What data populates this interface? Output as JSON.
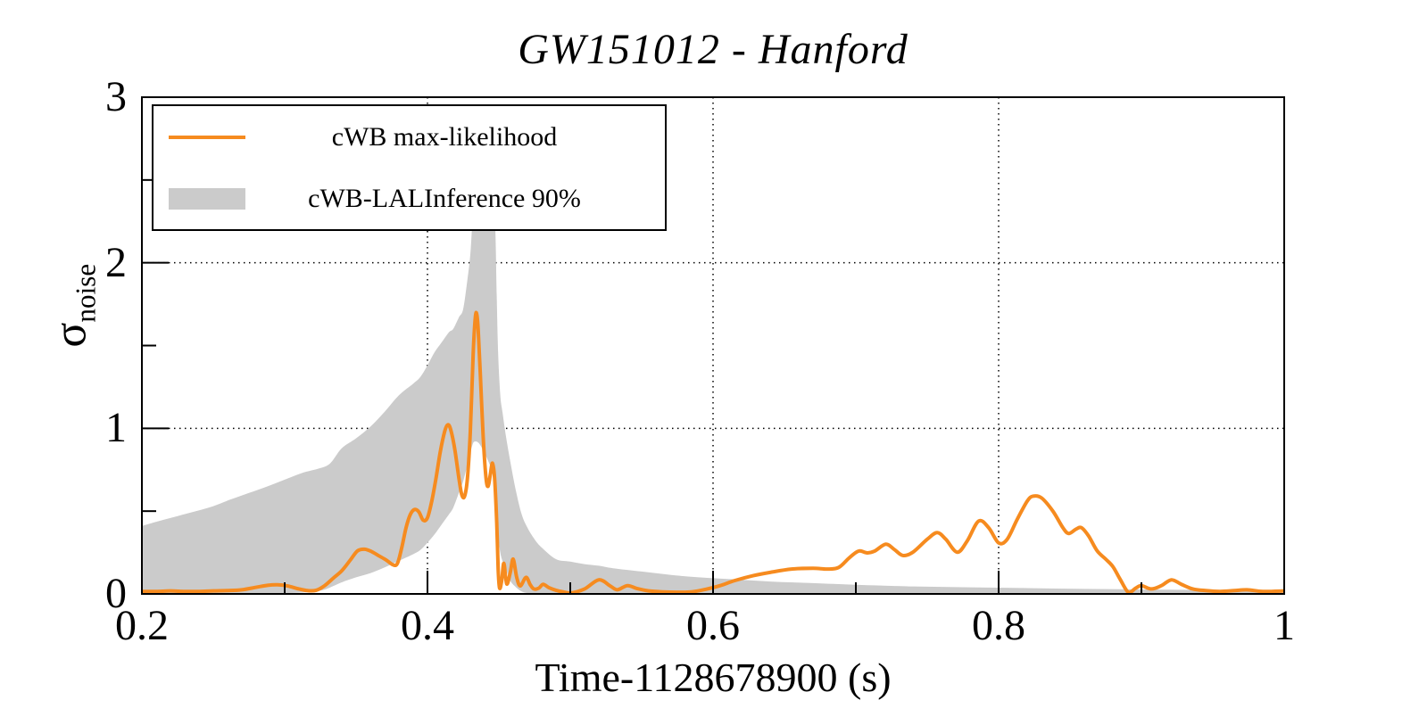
{
  "page": {
    "background": "#ffffff"
  },
  "chart_data": {
    "type": "line",
    "title": "GW151012 - Hanford",
    "xlabel": "Time-1128678900 (s)",
    "ylabel_symbol": "σ",
    "ylabel_subscript": "noise",
    "xlim": [
      0.2,
      1.0
    ],
    "ylim": [
      0,
      3
    ],
    "x_ticks": [
      0.2,
      0.4,
      0.6,
      0.8,
      1.0
    ],
    "x_tick_labels": [
      "0.2",
      "0.4",
      "0.6",
      "0.8",
      "1"
    ],
    "x_minor_ticks": [
      0.3,
      0.5,
      0.7,
      0.9
    ],
    "y_ticks": [
      0,
      1,
      2,
      3
    ],
    "y_tick_labels": [
      "0",
      "1",
      "2",
      "3"
    ],
    "y_minor_ticks": [
      0.5,
      1.5,
      2.5
    ],
    "grid": {
      "x_values": [
        0.4,
        0.6,
        0.8
      ],
      "y_values": [
        1,
        2
      ],
      "style": "dotted"
    },
    "colors": {
      "line": "#f68b1f",
      "band": "#cbcbcb",
      "axis": "#000000"
    },
    "legend": {
      "position": "top-left",
      "entries": [
        {
          "label": "cWB max-likelihood",
          "type": "line",
          "color": "#f68b1f"
        },
        {
          "label": "cWB-LALInference 90%",
          "type": "band",
          "color": "#cbcbcb"
        }
      ]
    },
    "series": [
      {
        "name": "cWB max-likelihood",
        "type": "line",
        "color": "#f68b1f",
        "x": [
          0.2,
          0.21,
          0.22,
          0.23,
          0.24,
          0.25,
          0.26,
          0.27,
          0.28,
          0.288,
          0.295,
          0.302,
          0.31,
          0.316,
          0.322,
          0.328,
          0.334,
          0.34,
          0.346,
          0.351,
          0.356,
          0.361,
          0.366,
          0.371,
          0.376,
          0.379,
          0.382,
          0.385,
          0.388,
          0.391,
          0.394,
          0.397,
          0.4,
          0.403,
          0.406,
          0.409,
          0.412,
          0.414,
          0.416,
          0.419,
          0.422,
          0.424,
          0.426,
          0.428,
          0.43,
          0.432,
          0.4335,
          0.4345,
          0.4355,
          0.437,
          0.439,
          0.441,
          0.4425,
          0.444,
          0.4455,
          0.447,
          0.4485,
          0.4495,
          0.4505,
          0.452,
          0.4535,
          0.4555,
          0.458,
          0.46,
          0.4625,
          0.465,
          0.469,
          0.472,
          0.4745,
          0.478,
          0.481,
          0.485,
          0.49,
          0.495,
          0.5,
          0.51,
          0.52,
          0.528,
          0.533,
          0.54,
          0.547,
          0.555,
          0.565,
          0.575,
          0.585,
          0.595,
          0.605,
          0.615,
          0.628,
          0.64,
          0.655,
          0.67,
          0.68,
          0.688,
          0.695,
          0.7,
          0.703,
          0.708,
          0.713,
          0.721,
          0.727,
          0.733,
          0.74,
          0.75,
          0.757,
          0.763,
          0.771,
          0.778,
          0.786,
          0.793,
          0.8,
          0.806,
          0.813,
          0.82,
          0.824,
          0.83,
          0.838,
          0.845,
          0.849,
          0.854,
          0.858,
          0.863,
          0.869,
          0.875,
          0.88,
          0.885,
          0.891,
          0.896,
          0.9,
          0.907,
          0.914,
          0.921,
          0.928,
          0.936,
          0.945,
          0.955,
          0.965,
          0.974,
          0.985,
          1.0
        ],
        "y": [
          0.015,
          0.015,
          0.018,
          0.015,
          0.015,
          0.018,
          0.02,
          0.025,
          0.04,
          0.052,
          0.055,
          0.048,
          0.03,
          0.02,
          0.022,
          0.05,
          0.095,
          0.14,
          0.205,
          0.26,
          0.27,
          0.255,
          0.23,
          0.205,
          0.175,
          0.185,
          0.28,
          0.4,
          0.48,
          0.51,
          0.495,
          0.445,
          0.46,
          0.56,
          0.7,
          0.86,
          0.98,
          1.02,
          1.0,
          0.88,
          0.7,
          0.6,
          0.59,
          0.7,
          0.98,
          1.45,
          1.67,
          1.69,
          1.6,
          1.33,
          0.95,
          0.7,
          0.65,
          0.72,
          0.79,
          0.7,
          0.43,
          0.15,
          0.035,
          0.08,
          0.185,
          0.06,
          0.13,
          0.21,
          0.1,
          0.048,
          0.1,
          0.055,
          0.03,
          0.035,
          0.058,
          0.038,
          0.022,
          0.012,
          0.005,
          0.03,
          0.085,
          0.048,
          0.025,
          0.05,
          0.032,
          0.018,
          0.012,
          0.01,
          0.012,
          0.028,
          0.05,
          0.08,
          0.11,
          0.13,
          0.15,
          0.155,
          0.15,
          0.16,
          0.215,
          0.25,
          0.26,
          0.248,
          0.258,
          0.3,
          0.268,
          0.232,
          0.252,
          0.33,
          0.37,
          0.33,
          0.252,
          0.32,
          0.44,
          0.4,
          0.308,
          0.33,
          0.45,
          0.56,
          0.59,
          0.58,
          0.5,
          0.4,
          0.365,
          0.39,
          0.4,
          0.35,
          0.26,
          0.21,
          0.165,
          0.09,
          0.008,
          0.035,
          0.05,
          0.03,
          0.05,
          0.085,
          0.058,
          0.03,
          0.02,
          0.015,
          0.02,
          0.025,
          0.015,
          0.018
        ]
      },
      {
        "name": "cWB-LALInference 90%",
        "type": "band",
        "color": "#cbcbcb",
        "x": [
          0.2,
          0.212,
          0.225,
          0.238,
          0.25,
          0.262,
          0.275,
          0.288,
          0.3,
          0.312,
          0.325,
          0.332,
          0.34,
          0.35,
          0.36,
          0.37,
          0.38,
          0.39,
          0.395,
          0.4,
          0.405,
          0.41,
          0.415,
          0.418,
          0.422,
          0.425,
          0.428,
          0.43,
          0.4315,
          0.433,
          0.436,
          0.44,
          0.4445,
          0.446,
          0.4475,
          0.4485,
          0.4495,
          0.451,
          0.4525,
          0.455,
          0.458,
          0.462,
          0.466,
          0.47,
          0.475,
          0.48,
          0.49,
          0.5,
          0.51,
          0.52,
          0.53,
          0.55,
          0.57,
          0.59,
          0.61,
          0.64,
          0.67,
          0.7,
          0.74,
          0.78,
          0.82,
          0.86,
          0.9,
          0.94,
          0.97,
          1.0
        ],
        "upper": [
          0.41,
          0.44,
          0.47,
          0.5,
          0.53,
          0.57,
          0.61,
          0.65,
          0.69,
          0.73,
          0.76,
          0.79,
          0.88,
          0.94,
          1.01,
          1.1,
          1.2,
          1.27,
          1.31,
          1.38,
          1.46,
          1.52,
          1.58,
          1.6,
          1.67,
          1.72,
          1.9,
          2.05,
          2.25,
          2.4,
          2.45,
          2.45,
          2.4,
          2.3,
          2.2,
          1.8,
          1.45,
          1.2,
          1.1,
          0.95,
          0.8,
          0.62,
          0.48,
          0.4,
          0.33,
          0.28,
          0.21,
          0.195,
          0.18,
          0.17,
          0.155,
          0.135,
          0.115,
          0.1,
          0.09,
          0.075,
          0.065,
          0.055,
          0.045,
          0.04,
          0.035,
          0.03,
          0.027,
          0.024,
          0.022,
          0.02
        ],
        "lower": [
          0.005,
          0.005,
          0.005,
          0.005,
          0.005,
          0.005,
          0.005,
          0.005,
          0.005,
          0.008,
          0.02,
          0.04,
          0.07,
          0.1,
          0.125,
          0.16,
          0.2,
          0.24,
          0.265,
          0.31,
          0.36,
          0.42,
          0.48,
          0.52,
          0.61,
          0.68,
          0.78,
          0.85,
          0.9,
          0.92,
          0.91,
          0.85,
          0.76,
          0.7,
          0.6,
          0.48,
          0.35,
          0.25,
          0.2,
          0.15,
          0.08,
          0.04,
          0.015,
          0.005,
          0.003,
          0.002,
          0.002,
          0.002,
          0.002,
          0.002,
          0.002,
          0.002,
          0.002,
          0.002,
          0.002,
          0.002,
          0.002,
          0.002,
          0.002,
          0.002,
          0.002,
          0.002,
          0.002,
          0.002,
          0.002,
          0.002
        ]
      }
    ]
  }
}
